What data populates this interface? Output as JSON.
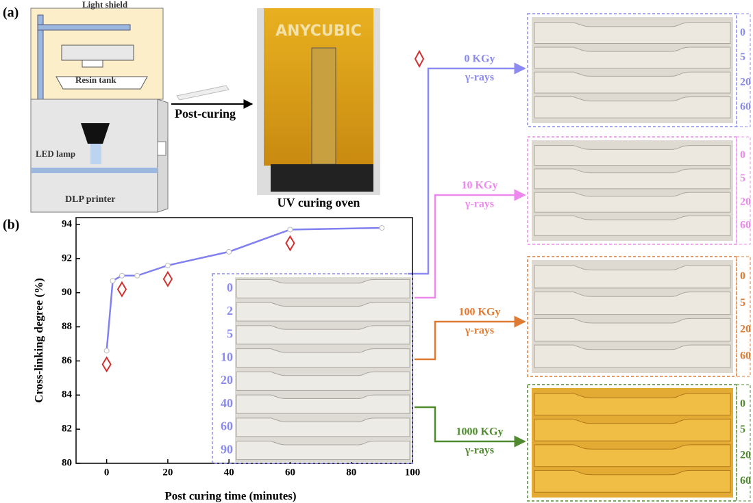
{
  "diagram": {
    "panel_a": "(a)",
    "light_shield": "Light shield",
    "resin_tank": "Resin tank",
    "led_lamp": "LED lamp",
    "dlp_printer": "DLP printer",
    "post_curing": "Post-curing",
    "brand": "ANYCUBIC",
    "uv_oven": "UV curing oven",
    "panel_b": "(b)"
  },
  "inset_samples": [
    "0",
    "2",
    "5",
    "10",
    "20",
    "40",
    "60",
    "90"
  ],
  "irradiation": [
    {
      "dose": "0 KGy",
      "rays": "γ-rays",
      "color": "#8a8af0",
      "samples": [
        "0",
        "5",
        "20",
        "60"
      ]
    },
    {
      "dose": "10 KGy",
      "rays": "γ-rays",
      "color": "#ee88ee",
      "samples": [
        "0",
        "5",
        "20",
        "60"
      ]
    },
    {
      "dose": "100 KGy",
      "rays": "γ-rays",
      "color": "#e07a30",
      "samples": [
        "0",
        "5",
        "20",
        "60"
      ]
    },
    {
      "dose": "1000 KGy",
      "rays": "γ-rays",
      "color": "#4f8a2e",
      "samples": [
        "0",
        "5",
        "20",
        "60"
      ]
    }
  ],
  "chart_data": {
    "type": "line",
    "x_label": "Post curing time (minutes)",
    "y_label": "Cross-linking degree (%)",
    "xlim": [
      -10,
      100
    ],
    "ylim": [
      80,
      94.4
    ],
    "xticks": [
      0,
      20,
      40,
      60,
      80,
      100
    ],
    "yticks": [
      80,
      82,
      84,
      86,
      88,
      90,
      92,
      94
    ],
    "series": [
      {
        "style": "line",
        "color": "#8080f0",
        "x": [
          0,
          2,
          5,
          10,
          20,
          40,
          60,
          90
        ],
        "values": [
          86.6,
          90.7,
          91.0,
          91.0,
          91.6,
          92.4,
          93.7,
          93.8
        ]
      },
      {
        "style": "diamond",
        "color": "#d03030",
        "x": [
          0,
          5,
          20,
          60
        ],
        "values": [
          85.8,
          90.2,
          90.8,
          92.9
        ]
      }
    ]
  }
}
